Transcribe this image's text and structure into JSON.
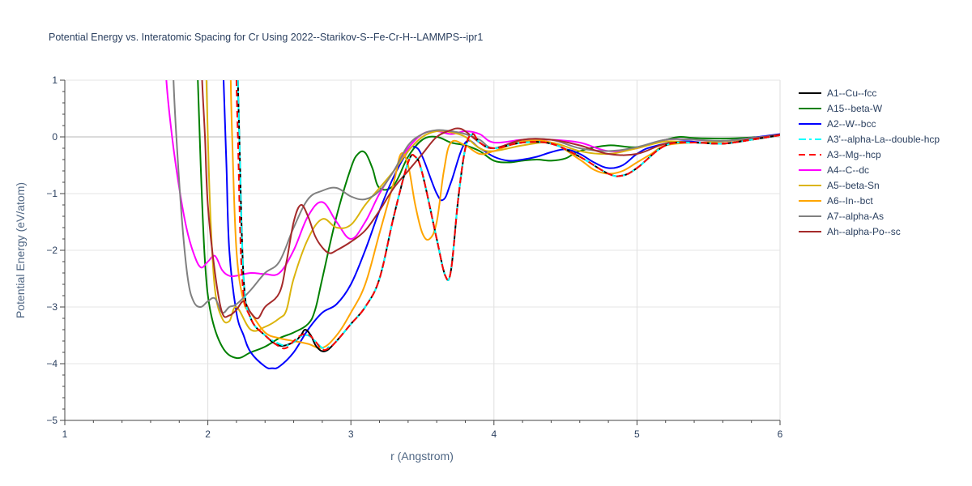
{
  "chart_data": {
    "type": "line",
    "title": "Potential Energy vs. Interatomic Spacing for Cr Using 2022--Starikov-S--Fe-Cr-H--LAMMPS--ipr1",
    "xlabel": "r (Angstrom)",
    "ylabel": "Potential Energy (eV/atom)",
    "xlim": [
      1,
      6
    ],
    "ylim": [
      -5,
      1
    ],
    "xticks": [
      1,
      2,
      3,
      4,
      5,
      6
    ],
    "yticks": [
      1,
      0,
      -1,
      -2,
      -3,
      -4,
      -5
    ],
    "ytick_labels": [
      "1",
      "0",
      "−1",
      "−2",
      "−3",
      "−4",
      "−5"
    ],
    "grid": true,
    "legend_position": "right",
    "series": [
      {
        "name": "A1--Cu--fcc",
        "color": "#000000",
        "dash": "solid",
        "x": [
          2.21,
          2.22,
          2.25,
          2.3,
          2.4,
          2.5,
          2.6,
          2.65,
          2.68,
          2.72,
          2.76,
          2.82,
          2.9,
          3.0,
          3.1,
          3.2,
          3.3,
          3.4,
          3.45,
          3.5,
          3.6,
          3.66,
          3.7,
          3.75,
          3.8,
          3.85,
          3.9,
          4.0,
          4.2,
          4.4,
          4.6,
          4.8,
          4.9,
          5.0,
          5.2,
          5.4,
          5.6,
          5.8,
          6.0
        ],
        "y": [
          1.0,
          0.0,
          -2.5,
          -3.2,
          -3.5,
          -3.68,
          -3.62,
          -3.5,
          -3.4,
          -3.5,
          -3.7,
          -3.78,
          -3.6,
          -3.3,
          -3.0,
          -2.5,
          -1.4,
          -0.45,
          -0.35,
          -0.65,
          -1.8,
          -2.45,
          -2.35,
          -1.1,
          -0.2,
          0.05,
          -0.1,
          -0.2,
          -0.1,
          -0.12,
          -0.35,
          -0.65,
          -0.68,
          -0.55,
          -0.15,
          -0.1,
          -0.12,
          -0.05,
          0.03
        ]
      },
      {
        "name": "A15--beta-W",
        "color": "#008000",
        "dash": "solid",
        "x": [
          1.93,
          1.95,
          1.98,
          2.02,
          2.1,
          2.2,
          2.3,
          2.4,
          2.5,
          2.6,
          2.7,
          2.75,
          2.8,
          2.9,
          3.0,
          3.05,
          3.1,
          3.15,
          3.2,
          3.3,
          3.4,
          3.5,
          3.6,
          3.7,
          3.8,
          3.9,
          4.0,
          4.1,
          4.2,
          4.3,
          4.4,
          4.5,
          4.6,
          4.8,
          5.0,
          5.2,
          5.3,
          5.4,
          5.6,
          5.8,
          6.0
        ],
        "y": [
          1.0,
          -0.5,
          -2.2,
          -3.1,
          -3.7,
          -3.9,
          -3.8,
          -3.7,
          -3.55,
          -3.45,
          -3.3,
          -3.05,
          -2.5,
          -1.4,
          -0.55,
          -0.3,
          -0.28,
          -0.55,
          -0.9,
          -0.85,
          -0.35,
          -0.05,
          0.0,
          -0.1,
          -0.15,
          -0.25,
          -0.42,
          -0.45,
          -0.42,
          -0.4,
          -0.42,
          -0.38,
          -0.25,
          -0.15,
          -0.18,
          -0.05,
          0.0,
          -0.02,
          -0.03,
          -0.01,
          0.03
        ]
      },
      {
        "name": "A2--W--bcc",
        "color": "#0000ff",
        "dash": "solid",
        "x": [
          2.11,
          2.13,
          2.15,
          2.2,
          2.25,
          2.3,
          2.4,
          2.45,
          2.5,
          2.6,
          2.7,
          2.8,
          2.9,
          3.0,
          3.1,
          3.2,
          3.3,
          3.4,
          3.45,
          3.5,
          3.6,
          3.65,
          3.7,
          3.8,
          3.9,
          4.0,
          4.1,
          4.2,
          4.3,
          4.4,
          4.5,
          4.6,
          4.7,
          4.8,
          4.9,
          5.0,
          5.1,
          5.3,
          5.5,
          5.7,
          6.0
        ],
        "y": [
          1.0,
          -0.5,
          -2.0,
          -3.1,
          -3.5,
          -3.8,
          -4.05,
          -4.08,
          -4.05,
          -3.8,
          -3.4,
          -3.1,
          -2.95,
          -2.6,
          -2.0,
          -1.3,
          -0.7,
          -0.25,
          -0.18,
          -0.35,
          -1.0,
          -1.1,
          -0.8,
          -0.1,
          -0.2,
          -0.35,
          -0.42,
          -0.4,
          -0.35,
          -0.27,
          -0.22,
          -0.3,
          -0.45,
          -0.55,
          -0.5,
          -0.3,
          -0.18,
          -0.08,
          -0.1,
          -0.05,
          0.05
        ]
      },
      {
        "name": "A3'--alpha-La--double-hcp",
        "color": "#00ffff",
        "dash": "dashdot",
        "x": [
          2.21,
          2.22,
          2.25,
          2.3,
          2.4,
          2.5,
          2.55,
          2.6,
          2.65,
          2.7,
          2.75,
          2.8,
          2.85,
          2.9,
          3.0,
          3.1,
          3.2,
          3.3,
          3.4,
          3.45,
          3.5,
          3.6,
          3.66,
          3.7,
          3.75,
          3.8,
          3.85,
          3.9,
          4.0,
          4.2,
          4.4,
          4.6,
          4.8,
          4.9,
          5.0,
          5.2,
          5.4,
          5.6,
          5.8,
          6.0
        ],
        "y": [
          1.0,
          0.0,
          -2.5,
          -3.2,
          -3.5,
          -3.65,
          -3.68,
          -3.62,
          -3.52,
          -3.5,
          -3.6,
          -3.72,
          -3.7,
          -3.6,
          -3.3,
          -3.0,
          -2.5,
          -1.4,
          -0.45,
          -0.35,
          -0.65,
          -1.8,
          -2.45,
          -2.35,
          -1.1,
          -0.2,
          0.05,
          -0.1,
          -0.2,
          -0.1,
          -0.12,
          -0.35,
          -0.65,
          -0.68,
          -0.55,
          -0.15,
          -0.1,
          -0.12,
          -0.05,
          0.03
        ]
      },
      {
        "name": "A3--Mg--hcp",
        "color": "#ff0000",
        "dash": "dash",
        "x": [
          2.2,
          2.21,
          2.24,
          2.3,
          2.4,
          2.5,
          2.55,
          2.6,
          2.65,
          2.7,
          2.75,
          2.8,
          2.85,
          2.9,
          3.0,
          3.1,
          3.2,
          3.3,
          3.4,
          3.45,
          3.5,
          3.6,
          3.66,
          3.7,
          3.75,
          3.8,
          3.85,
          3.9,
          4.0,
          4.2,
          4.4,
          4.6,
          4.8,
          4.9,
          5.0,
          5.2,
          5.4,
          5.6,
          5.8,
          6.0
        ],
        "y": [
          1.0,
          0.0,
          -2.5,
          -3.2,
          -3.5,
          -3.7,
          -3.72,
          -3.6,
          -3.5,
          -3.48,
          -3.6,
          -3.75,
          -3.72,
          -3.6,
          -3.3,
          -3.0,
          -2.5,
          -1.4,
          -0.45,
          -0.35,
          -0.65,
          -1.8,
          -2.45,
          -2.35,
          -1.1,
          -0.2,
          0.05,
          -0.1,
          -0.2,
          -0.1,
          -0.12,
          -0.35,
          -0.65,
          -0.68,
          -0.55,
          -0.15,
          -0.1,
          -0.12,
          -0.05,
          0.03
        ]
      },
      {
        "name": "A4--C--dc",
        "color": "#ff00ff",
        "dash": "solid",
        "x": [
          1.71,
          1.75,
          1.8,
          1.85,
          1.9,
          1.95,
          2.0,
          2.05,
          2.1,
          2.15,
          2.2,
          2.3,
          2.4,
          2.5,
          2.6,
          2.7,
          2.8,
          2.9,
          3.0,
          3.1,
          3.2,
          3.3,
          3.4,
          3.5,
          3.6,
          3.7,
          3.8,
          3.9,
          4.0,
          4.2,
          4.4,
          4.6,
          4.8,
          5.0,
          5.2,
          5.4,
          5.6,
          5.8,
          6.0
        ],
        "y": [
          1.0,
          0.0,
          -0.9,
          -1.6,
          -2.05,
          -2.3,
          -2.2,
          -2.1,
          -2.35,
          -2.45,
          -2.45,
          -2.4,
          -2.42,
          -2.4,
          -2.0,
          -1.4,
          -1.15,
          -1.5,
          -1.8,
          -1.5,
          -1.0,
          -0.6,
          -0.2,
          0.05,
          0.1,
          0.05,
          0.1,
          0.05,
          -0.1,
          -0.05,
          -0.05,
          -0.1,
          -0.25,
          -0.2,
          -0.05,
          -0.05,
          -0.08,
          -0.02,
          0.03
        ]
      },
      {
        "name": "A5--beta-Sn",
        "color": "#dbb40c",
        "dash": "solid",
        "x": [
          1.99,
          2.0,
          2.02,
          2.05,
          2.1,
          2.15,
          2.2,
          2.3,
          2.4,
          2.5,
          2.55,
          2.6,
          2.7,
          2.8,
          2.9,
          3.0,
          3.1,
          3.2,
          3.3,
          3.4,
          3.5,
          3.6,
          3.7,
          3.8,
          3.9,
          4.0,
          4.2,
          4.4,
          4.6,
          4.8,
          5.0,
          5.2,
          5.4,
          5.6,
          5.8,
          6.0
        ],
        "y": [
          1.0,
          0.0,
          -1.5,
          -2.7,
          -3.2,
          -3.25,
          -3.0,
          -3.4,
          -3.35,
          -3.2,
          -3.05,
          -2.5,
          -1.8,
          -1.45,
          -1.6,
          -1.55,
          -1.2,
          -0.9,
          -0.6,
          -0.25,
          0.0,
          0.1,
          0.08,
          0.0,
          -0.2,
          -0.25,
          -0.15,
          -0.1,
          -0.25,
          -0.3,
          -0.2,
          -0.08,
          -0.1,
          -0.08,
          -0.03,
          0.04
        ]
      },
      {
        "name": "A6--In--bct",
        "color": "#ffa500",
        "dash": "solid",
        "x": [
          2.16,
          2.17,
          2.2,
          2.25,
          2.3,
          2.4,
          2.5,
          2.6,
          2.7,
          2.8,
          2.9,
          3.0,
          3.1,
          3.2,
          3.3,
          3.35,
          3.4,
          3.45,
          3.5,
          3.55,
          3.6,
          3.65,
          3.7,
          3.8,
          3.9,
          4.0,
          4.2,
          4.4,
          4.6,
          4.7,
          4.8,
          4.9,
          5.0,
          5.1,
          5.2,
          5.4,
          5.6,
          5.8,
          6.0
        ],
        "y": [
          1.0,
          0.0,
          -2.0,
          -2.9,
          -3.1,
          -3.45,
          -3.55,
          -3.6,
          -3.65,
          -3.72,
          -3.5,
          -3.1,
          -2.6,
          -1.7,
          -0.8,
          -0.3,
          -0.5,
          -1.2,
          -1.7,
          -1.8,
          -1.5,
          -0.6,
          -0.1,
          -0.15,
          -0.3,
          -0.25,
          -0.08,
          -0.1,
          -0.4,
          -0.58,
          -0.65,
          -0.6,
          -0.45,
          -0.3,
          -0.15,
          -0.1,
          -0.12,
          -0.05,
          0.03
        ]
      },
      {
        "name": "A7--alpha-As",
        "color": "#808080",
        "dash": "solid",
        "x": [
          1.76,
          1.78,
          1.82,
          1.86,
          1.9,
          1.95,
          2.0,
          2.05,
          2.1,
          2.15,
          2.2,
          2.3,
          2.4,
          2.5,
          2.6,
          2.7,
          2.8,
          2.9,
          3.0,
          3.1,
          3.2,
          3.3,
          3.4,
          3.5,
          3.6,
          3.7,
          3.8,
          3.9,
          4.0,
          4.2,
          4.4,
          4.6,
          4.8,
          5.0,
          5.2,
          5.4,
          5.6,
          5.8,
          6.0
        ],
        "y": [
          1.0,
          0.0,
          -1.5,
          -2.5,
          -2.9,
          -3.0,
          -2.9,
          -2.85,
          -3.1,
          -3.0,
          -2.95,
          -2.7,
          -2.4,
          -2.2,
          -1.6,
          -1.1,
          -0.95,
          -0.9,
          -1.05,
          -1.1,
          -0.95,
          -0.6,
          -0.15,
          0.05,
          0.12,
          0.1,
          0.05,
          -0.05,
          -0.2,
          -0.05,
          -0.05,
          -0.2,
          -0.25,
          -0.18,
          -0.05,
          -0.05,
          -0.07,
          -0.02,
          0.03
        ]
      },
      {
        "name": "Ah--alpha-Po--sc",
        "color": "#a52a2a",
        "dash": "solid",
        "x": [
          1.96,
          1.98,
          2.0,
          2.05,
          2.1,
          2.15,
          2.2,
          2.25,
          2.3,
          2.35,
          2.4,
          2.5,
          2.55,
          2.6,
          2.65,
          2.7,
          2.75,
          2.8,
          2.85,
          2.9,
          3.0,
          3.1,
          3.2,
          3.3,
          3.4,
          3.5,
          3.6,
          3.7,
          3.75,
          3.8,
          3.9,
          4.0,
          4.2,
          4.4,
          4.6,
          4.8,
          5.0,
          5.2,
          5.4,
          5.6,
          5.8,
          6.0
        ],
        "y": [
          1.0,
          0.0,
          -1.2,
          -2.4,
          -3.1,
          -3.15,
          -3.05,
          -2.9,
          -3.1,
          -3.2,
          -3.0,
          -2.75,
          -2.2,
          -1.5,
          -1.2,
          -1.4,
          -1.75,
          -1.95,
          -2.05,
          -2.0,
          -1.85,
          -1.65,
          -1.3,
          -0.9,
          -0.6,
          -0.3,
          0.0,
          0.12,
          0.15,
          0.1,
          -0.1,
          -0.2,
          -0.05,
          -0.05,
          -0.15,
          -0.3,
          -0.3,
          -0.12,
          -0.1,
          -0.12,
          -0.04,
          0.04
        ]
      }
    ]
  }
}
